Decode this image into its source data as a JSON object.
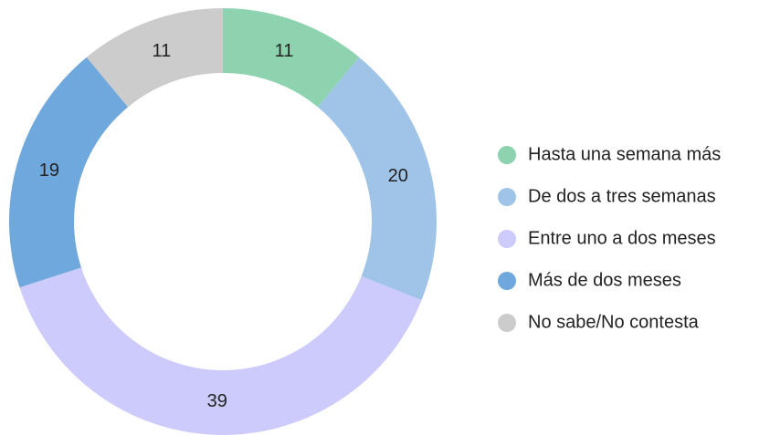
{
  "chart_data": {
    "type": "donut",
    "categories": [
      "Hasta una semana más",
      "De dos a tres semanas",
      "Entre uno a dos meses",
      "Más de dos meses",
      "No sabe/No contesta"
    ],
    "values": [
      11,
      20,
      39,
      19,
      11
    ],
    "colors": [
      "#8dd3b0",
      "#a0c4e8",
      "#cccbfb",
      "#6fa8dc",
      "#cccccc"
    ],
    "legend": "right"
  }
}
